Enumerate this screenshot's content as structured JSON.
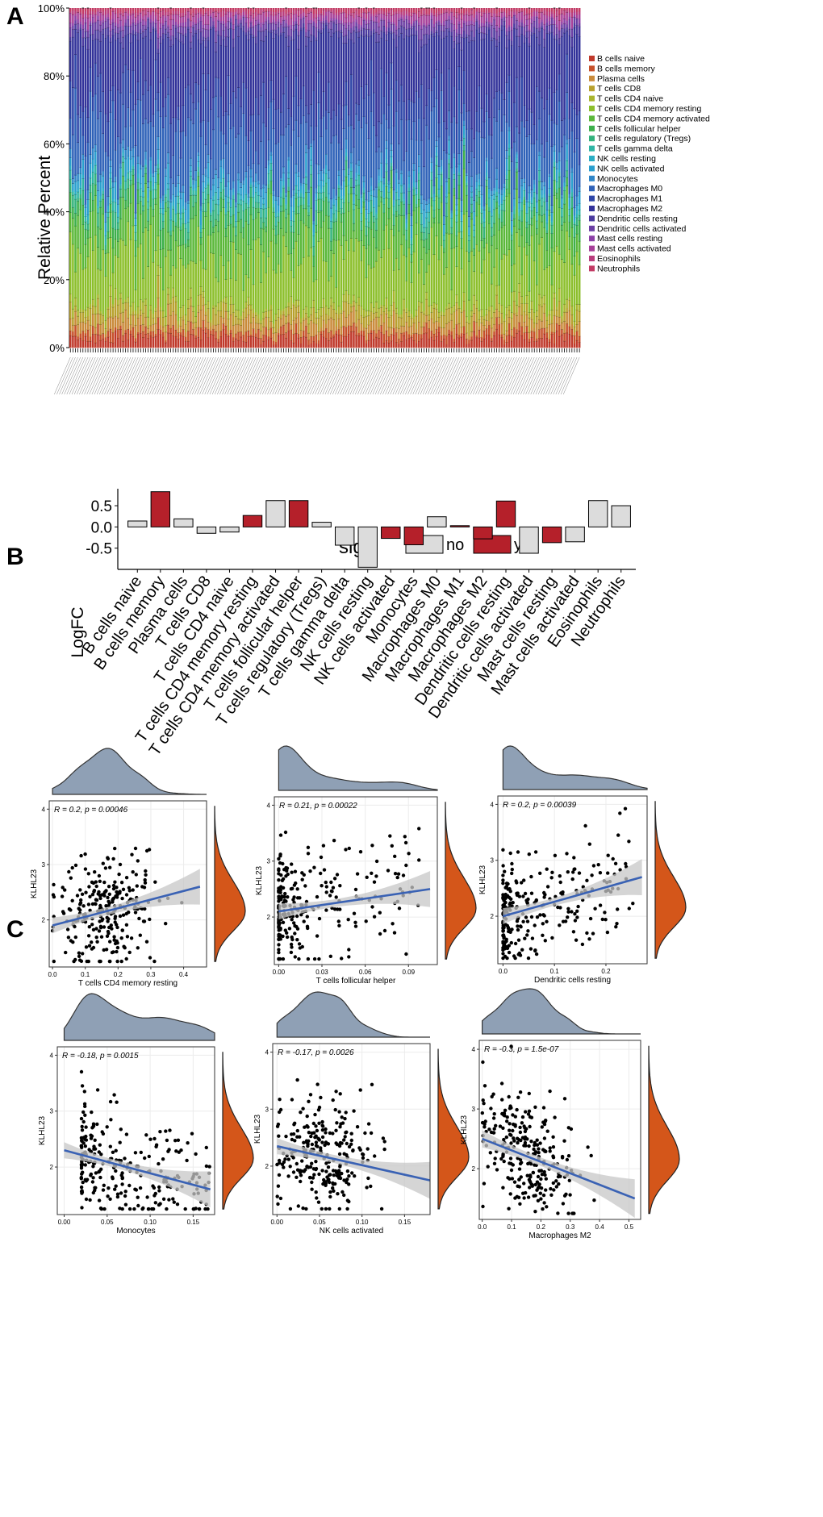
{
  "panels": {
    "a": "A",
    "b": "B",
    "c": "C"
  },
  "chart_data": [
    {
      "type": "bar",
      "stacked": true,
      "panel": "A",
      "ylabel": "Relative Percent",
      "yticks": [
        "0%",
        "20%",
        "40%",
        "60%",
        "80%",
        "100%"
      ],
      "ylim": [
        0,
        100
      ],
      "n_samples": 204,
      "legend": {
        "placement": "right",
        "entries": [
          {
            "label": "B cells naive",
            "color": "#c0392b"
          },
          {
            "label": "B cells memory",
            "color": "#c6502a"
          },
          {
            "label": "Plasma cells",
            "color": "#c98a3a"
          },
          {
            "label": "T cells CD8",
            "color": "#b8a12e"
          },
          {
            "label": "T cells CD4 naive",
            "color": "#a9b52d"
          },
          {
            "label": "T cells CD4 memory resting",
            "color": "#8cbf2c"
          },
          {
            "label": "T cells CD4 memory activated",
            "color": "#5bb83a"
          },
          {
            "label": "T cells follicular helper",
            "color": "#3caf4b"
          },
          {
            "label": "T cells regulatory (Tregs)",
            "color": "#33b27c"
          },
          {
            "label": "T cells gamma delta",
            "color": "#2fb5a4"
          },
          {
            "label": "NK cells resting",
            "color": "#2aaec4"
          },
          {
            "label": "NK cells activated",
            "color": "#2a9fce"
          },
          {
            "label": "Monocytes",
            "color": "#2f86c8"
          },
          {
            "label": "Macrophages M0",
            "color": "#2f62b8"
          },
          {
            "label": "Macrophages M1",
            "color": "#2e46a8"
          },
          {
            "label": "Macrophages M2",
            "color": "#33339a"
          },
          {
            "label": "Dendritic cells resting",
            "color": "#4a3a9e"
          },
          {
            "label": "Dendritic cells activated",
            "color": "#6a3ea3"
          },
          {
            "label": "Mast cells resting",
            "color": "#8b3fa6"
          },
          {
            "label": "Mast cells activated",
            "color": "#a63f98"
          },
          {
            "label": "Eosinophils",
            "color": "#b83c7c"
          },
          {
            "label": "Neutrophils",
            "color": "#c23a64"
          }
        ]
      }
    },
    {
      "type": "bar",
      "panel": "B",
      "ylabel": "LogFC",
      "yticks": [
        "-0.5",
        "0.0",
        "0.5"
      ],
      "ylim": [
        -1.0,
        0.9
      ],
      "legend": {
        "title": "sig",
        "placement": "top",
        "no": "no",
        "yes": "yes",
        "no_color": "#dcdcdc",
        "yes_color": "#b5202a"
      },
      "categories": [
        "B cells naive",
        "B cells memory",
        "Plasma cells",
        "T cells CD8",
        "T cells CD4 naive",
        "T cells CD4 memory resting",
        "T cells CD4 memory activated",
        "T cells follicular helper",
        "T cells regulatory (Tregs)",
        "T cells gamma delta",
        "NK cells resting",
        "NK cells activated",
        "Monocytes",
        "Macrophages M0",
        "Macrophages M1",
        "Macrophages M2",
        "Dendritic cells resting",
        "Dendritic cells activated",
        "Mast cells resting",
        "Mast cells activated",
        "Eosinophils",
        "Neutrophils"
      ],
      "values": [
        0.14,
        0.83,
        0.19,
        -0.15,
        -0.12,
        0.27,
        0.62,
        0.62,
        0.11,
        -0.43,
        -0.95,
        -0.27,
        -0.42,
        0.24,
        0.03,
        -0.28,
        0.61,
        -0.62,
        -0.37,
        -0.35,
        0.62,
        0.5
      ],
      "sig": [
        false,
        true,
        false,
        false,
        false,
        true,
        false,
        true,
        false,
        false,
        false,
        true,
        true,
        false,
        true,
        true,
        true,
        false,
        true,
        false,
        false,
        false
      ]
    },
    {
      "type": "scatter",
      "panel": "C",
      "position": "top-left",
      "xlabel": "T cells CD4 memory resting",
      "ylabel": "KLHL23",
      "annotation": "R = 0.2, p = 0.00046",
      "xlim": [
        -0.01,
        0.47
      ],
      "ylim": [
        1.15,
        4.15
      ],
      "xticks": [
        "0.0",
        "0.1",
        "0.2",
        "0.3",
        "0.4"
      ],
      "xtick_values": [
        0,
        0.1,
        0.2,
        0.3,
        0.4
      ],
      "yticks": [
        "2",
        "3",
        "4"
      ],
      "fit": {
        "x": [
          0.0,
          0.45
        ],
        "y": [
          1.9,
          2.6
        ]
      },
      "points_spec": {
        "n": 260,
        "xmin": 0.0,
        "xmax": 0.42,
        "xmode": 0.17,
        "skew": 1.0
      }
    },
    {
      "type": "scatter",
      "panel": "C",
      "position": "top-center",
      "xlabel": "T cells follicular helper",
      "ylabel": "KLHL23",
      "annotation": "R = 0.21, p = 0.00022",
      "xlim": [
        -0.003,
        0.11
      ],
      "ylim": [
        1.15,
        4.15
      ],
      "xticks": [
        "0.00",
        "0.03",
        "0.06",
        "0.09"
      ],
      "xtick_values": [
        0,
        0.03,
        0.06,
        0.09
      ],
      "yticks": [
        "2",
        "3",
        "4"
      ],
      "fit": {
        "x": [
          0.0,
          0.105
        ],
        "y": [
          2.1,
          2.5
        ]
      },
      "points_spec": {
        "n": 260,
        "xmin": 0.0,
        "xmax": 0.1,
        "xmode": 0.0,
        "skew": 3.0
      }
    },
    {
      "type": "scatter",
      "panel": "C",
      "position": "top-right",
      "xlabel": "Dendritic cells resting",
      "ylabel": "KLHL23",
      "annotation": "R = 0.2, p = 0.00039",
      "xlim": [
        -0.01,
        0.28
      ],
      "ylim": [
        1.15,
        4.15
      ],
      "xticks": [
        "0.0",
        "0.1",
        "0.2"
      ],
      "xtick_values": [
        0,
        0.1,
        0.2
      ],
      "yticks": [
        "2",
        "3",
        "4"
      ],
      "fit": {
        "x": [
          0.0,
          0.27
        ],
        "y": [
          2.0,
          2.7
        ]
      },
      "points_spec": {
        "n": 260,
        "xmin": 0.0,
        "xmax": 0.26,
        "xmode": 0.0,
        "skew": 2.6
      }
    },
    {
      "type": "scatter",
      "panel": "C",
      "position": "bottom-left",
      "xlabel": "Monocytes",
      "ylabel": "KLHL23",
      "annotation": "R = -0.18, p = 0.0015",
      "xlim": [
        -0.008,
        0.175
      ],
      "ylim": [
        1.15,
        4.15
      ],
      "xticks": [
        "0.00",
        "0.05",
        "0.10",
        "0.15"
      ],
      "xtick_values": [
        0,
        0.05,
        0.1,
        0.15
      ],
      "yticks": [
        "2",
        "3",
        "4"
      ],
      "fit": {
        "x": [
          0.0,
          0.17
        ],
        "y": [
          2.3,
          1.6
        ]
      },
      "points_spec": {
        "n": 260,
        "xmin": 0.0,
        "xmax": 0.17,
        "xmode": 0.02,
        "skew": 2.0
      }
    },
    {
      "type": "scatter",
      "panel": "C",
      "position": "bottom-center",
      "xlabel": "NK cells activated",
      "ylabel": "KLHL23",
      "annotation": "R = -0.17, p = 0.0026",
      "xlim": [
        -0.005,
        0.18
      ],
      "ylim": [
        1.15,
        4.15
      ],
      "xticks": [
        "0.00",
        "0.05",
        "0.10",
        "0.15"
      ],
      "xtick_values": [
        0,
        0.05,
        0.1,
        0.15
      ],
      "yticks": [
        "2",
        "3",
        "4"
      ],
      "fit": {
        "x": [
          0.0,
          0.18
        ],
        "y": [
          2.35,
          1.75
        ]
      },
      "points_spec": {
        "n": 260,
        "xmin": 0.0,
        "xmax": 0.17,
        "xmode": 0.05,
        "skew": 1.3
      }
    },
    {
      "type": "scatter",
      "panel": "C",
      "position": "bottom-right",
      "xlabel": "Macrophages M2",
      "ylabel": "KLHL23",
      "annotation": "R = -0.3, p = 1.5e-07",
      "xlim": [
        -0.01,
        0.54
      ],
      "ylim": [
        1.15,
        4.15
      ],
      "xticks": [
        "0.0",
        "0.1",
        "0.2",
        "0.3",
        "0.4",
        "0.5"
      ],
      "xtick_values": [
        0,
        0.1,
        0.2,
        0.3,
        0.4,
        0.5
      ],
      "yticks": [
        "2",
        "3",
        "4"
      ],
      "fit": {
        "x": [
          0.0,
          0.52
        ],
        "y": [
          2.5,
          1.5
        ]
      },
      "points_spec": {
        "n": 260,
        "xmin": 0.0,
        "xmax": 0.5,
        "xmode": 0.15,
        "skew": 0.9
      }
    }
  ],
  "colors": {
    "density_top": "#8fa0b5",
    "density_right": "#d4561a",
    "fit_line": "#3a62b4",
    "ci_band": "#c7c7c7"
  }
}
